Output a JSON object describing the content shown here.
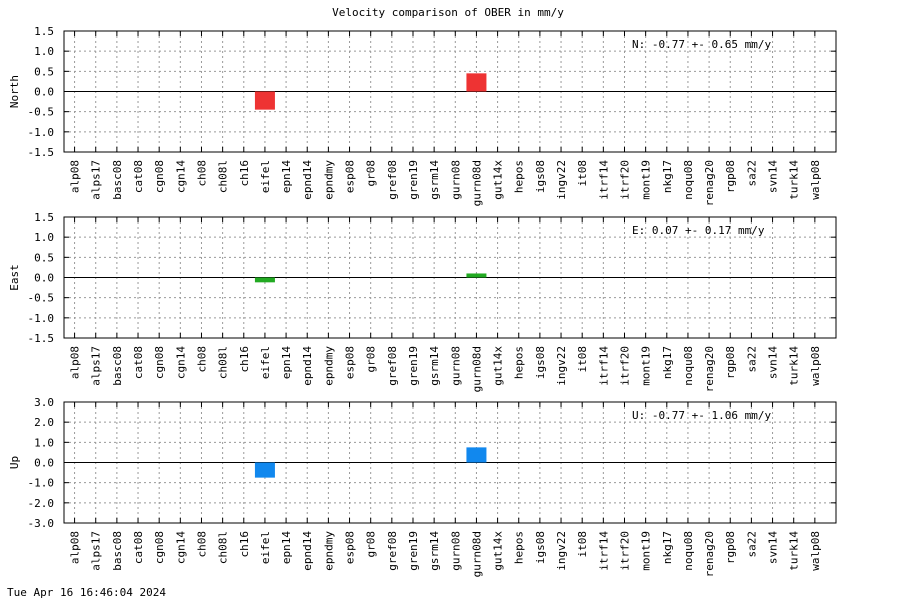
{
  "chart_data": {
    "title": "Velocity comparison of OBER in mm/y",
    "categories": [
      "alp08",
      "alps17",
      "basc08",
      "cat08",
      "cgn08",
      "cgn14",
      "ch08",
      "ch08l",
      "ch16",
      "eifel",
      "epn14",
      "epnd14",
      "epndmy",
      "esp08",
      "gr08",
      "gref08",
      "gren19",
      "gsrm14",
      "gurn08",
      "gurn08d",
      "gut14x",
      "hepos",
      "igs08",
      "ingv22",
      "it08",
      "itrf14",
      "itrf20",
      "mont19",
      "nkg17",
      "noqu08",
      "renag20",
      "rgp08",
      "sa22",
      "svn14",
      "turk14",
      "walp08"
    ],
    "panels": [
      {
        "type": "bar",
        "ylabel": "North",
        "color": "#ee3333",
        "ylim": [
          -1.5,
          1.5
        ],
        "yticks": [
          "1.5",
          "1.0",
          "0.5",
          "0.0",
          "-0.5",
          "-1.0",
          "-1.5"
        ],
        "annotation": "N:  -0.77 +-  0.65 mm/y",
        "values": {
          "eifel": -0.45,
          "gurn08d": 0.45
        },
        "grid": true
      },
      {
        "type": "bar",
        "ylabel": "East",
        "color": "#22aa22",
        "ylim": [
          -1.5,
          1.5
        ],
        "yticks": [
          "1.5",
          "1.0",
          "0.5",
          "0.0",
          "-0.5",
          "-1.0",
          "-1.5"
        ],
        "annotation": "E:   0.07 +-  0.17 mm/y",
        "values": {
          "eifel": -0.12,
          "gurn08d": 0.1
        },
        "grid": true
      },
      {
        "type": "bar",
        "ylabel": "Up",
        "color": "#1188ee",
        "ylim": [
          -3.0,
          3.0
        ],
        "yticks": [
          "3.0",
          "2.0",
          "1.0",
          "0.0",
          "-1.0",
          "-2.0",
          "-3.0"
        ],
        "annotation": "U:  -0.77 +-  1.06 mm/y",
        "values": {
          "eifel": -0.75,
          "gurn08d": 0.75
        },
        "grid": true
      }
    ]
  },
  "footer": {
    "timestamp": "Tue Apr 16 16:46:04 2024"
  }
}
